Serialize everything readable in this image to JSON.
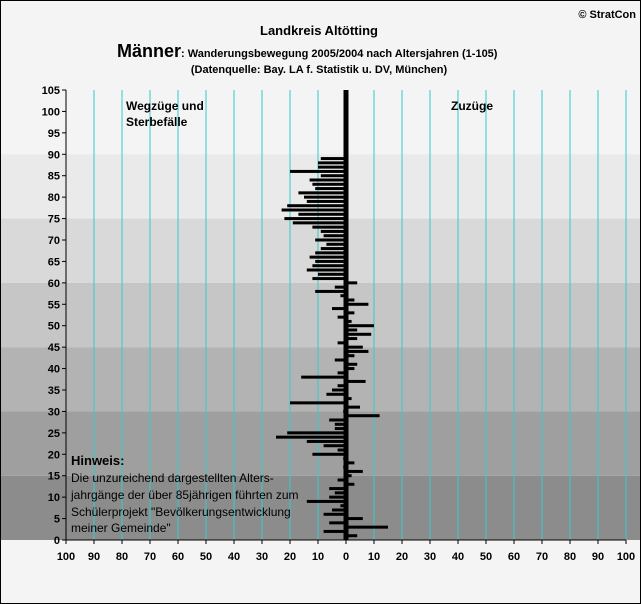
{
  "header": {
    "copyright": "© StratCon",
    "region": "Landkreis Altötting",
    "gender": "Männer",
    "subtitle": ": Wanderungsbewegung 2005/2004 nach Altersjahren (1-105)",
    "source": "(Datenquelle: Bay. LA f. Statistik u. DV, München)"
  },
  "labels": {
    "left_line1": "Wegzüge und",
    "left_line2": "Sterbefälle",
    "right": "Zuzüge"
  },
  "note": {
    "title": "Hinweis:",
    "lines": [
      "Die unzureichend dargestellten Alters-",
      "jahrgänge der über 85jährigen führten zum",
      "Schülerprojekt \"Bevölkerungsentwicklung",
      "meiner Gemeinde\""
    ]
  },
  "colors": {
    "bar": "#000000",
    "gridline": "#33cccc",
    "left_label": "#ff0000",
    "right_label": "#008000"
  },
  "chart_data": {
    "type": "bar",
    "orientation": "horizontal",
    "x_ticks": [
      "100",
      "90",
      "80",
      "70",
      "60",
      "50",
      "40",
      "30",
      "20",
      "10",
      "0",
      "10",
      "20",
      "30",
      "40",
      "50",
      "60",
      "70",
      "80",
      "90",
      "100"
    ],
    "y_ticks": [
      0,
      5,
      10,
      15,
      20,
      25,
      30,
      35,
      40,
      45,
      50,
      55,
      60,
      65,
      70,
      75,
      80,
      85,
      90,
      95,
      100,
      105
    ],
    "xlim": [
      -100,
      100
    ],
    "ylim": [
      0,
      105
    ],
    "grid": true,
    "series": [
      {
        "age": [
          1,
          2,
          3,
          4,
          5,
          6,
          7,
          8,
          9,
          10,
          11,
          12,
          13,
          14,
          15,
          16,
          17,
          18,
          19,
          20,
          21,
          22,
          23,
          24,
          25,
          26,
          27,
          28,
          29,
          30,
          31,
          32,
          33,
          34,
          35,
          36,
          37,
          38,
          39,
          40,
          41,
          42,
          43,
          44,
          45,
          46,
          47,
          48,
          49,
          50,
          51,
          52,
          53,
          54,
          55,
          56,
          57,
          58,
          59,
          60,
          61,
          62,
          63,
          64,
          65,
          66,
          67,
          68,
          69,
          70,
          71,
          72,
          73,
          74,
          75,
          76,
          77,
          78,
          79,
          80,
          81,
          82,
          83,
          84,
          85,
          86,
          87,
          88,
          89
        ],
        "value": [
          4,
          -8,
          15,
          -6,
          6,
          -8,
          -5,
          -2,
          -14,
          -6,
          -4,
          -6,
          3,
          -3,
          2,
          6,
          -1,
          3,
          -1,
          -12,
          -3,
          -8,
          -14,
          -25,
          -21,
          -4,
          -4,
          -6,
          12,
          -1,
          5,
          -20,
          2,
          -7,
          -5,
          -3,
          7,
          -16,
          -3,
          3,
          4,
          -4,
          3,
          8,
          6,
          -3,
          4,
          9,
          4,
          10,
          2,
          -3,
          3,
          -5,
          8,
          3,
          -2,
          -11,
          -4,
          4,
          -12,
          -10,
          -14,
          -12,
          -11,
          -13,
          -11,
          -9,
          -7,
          -11,
          -8,
          -9,
          -12,
          -19,
          -22,
          -17,
          -23,
          -21,
          -14,
          -15,
          -17,
          -11,
          -12,
          -13,
          -9,
          -20,
          -10,
          -10,
          -9
        ]
      }
    ]
  }
}
